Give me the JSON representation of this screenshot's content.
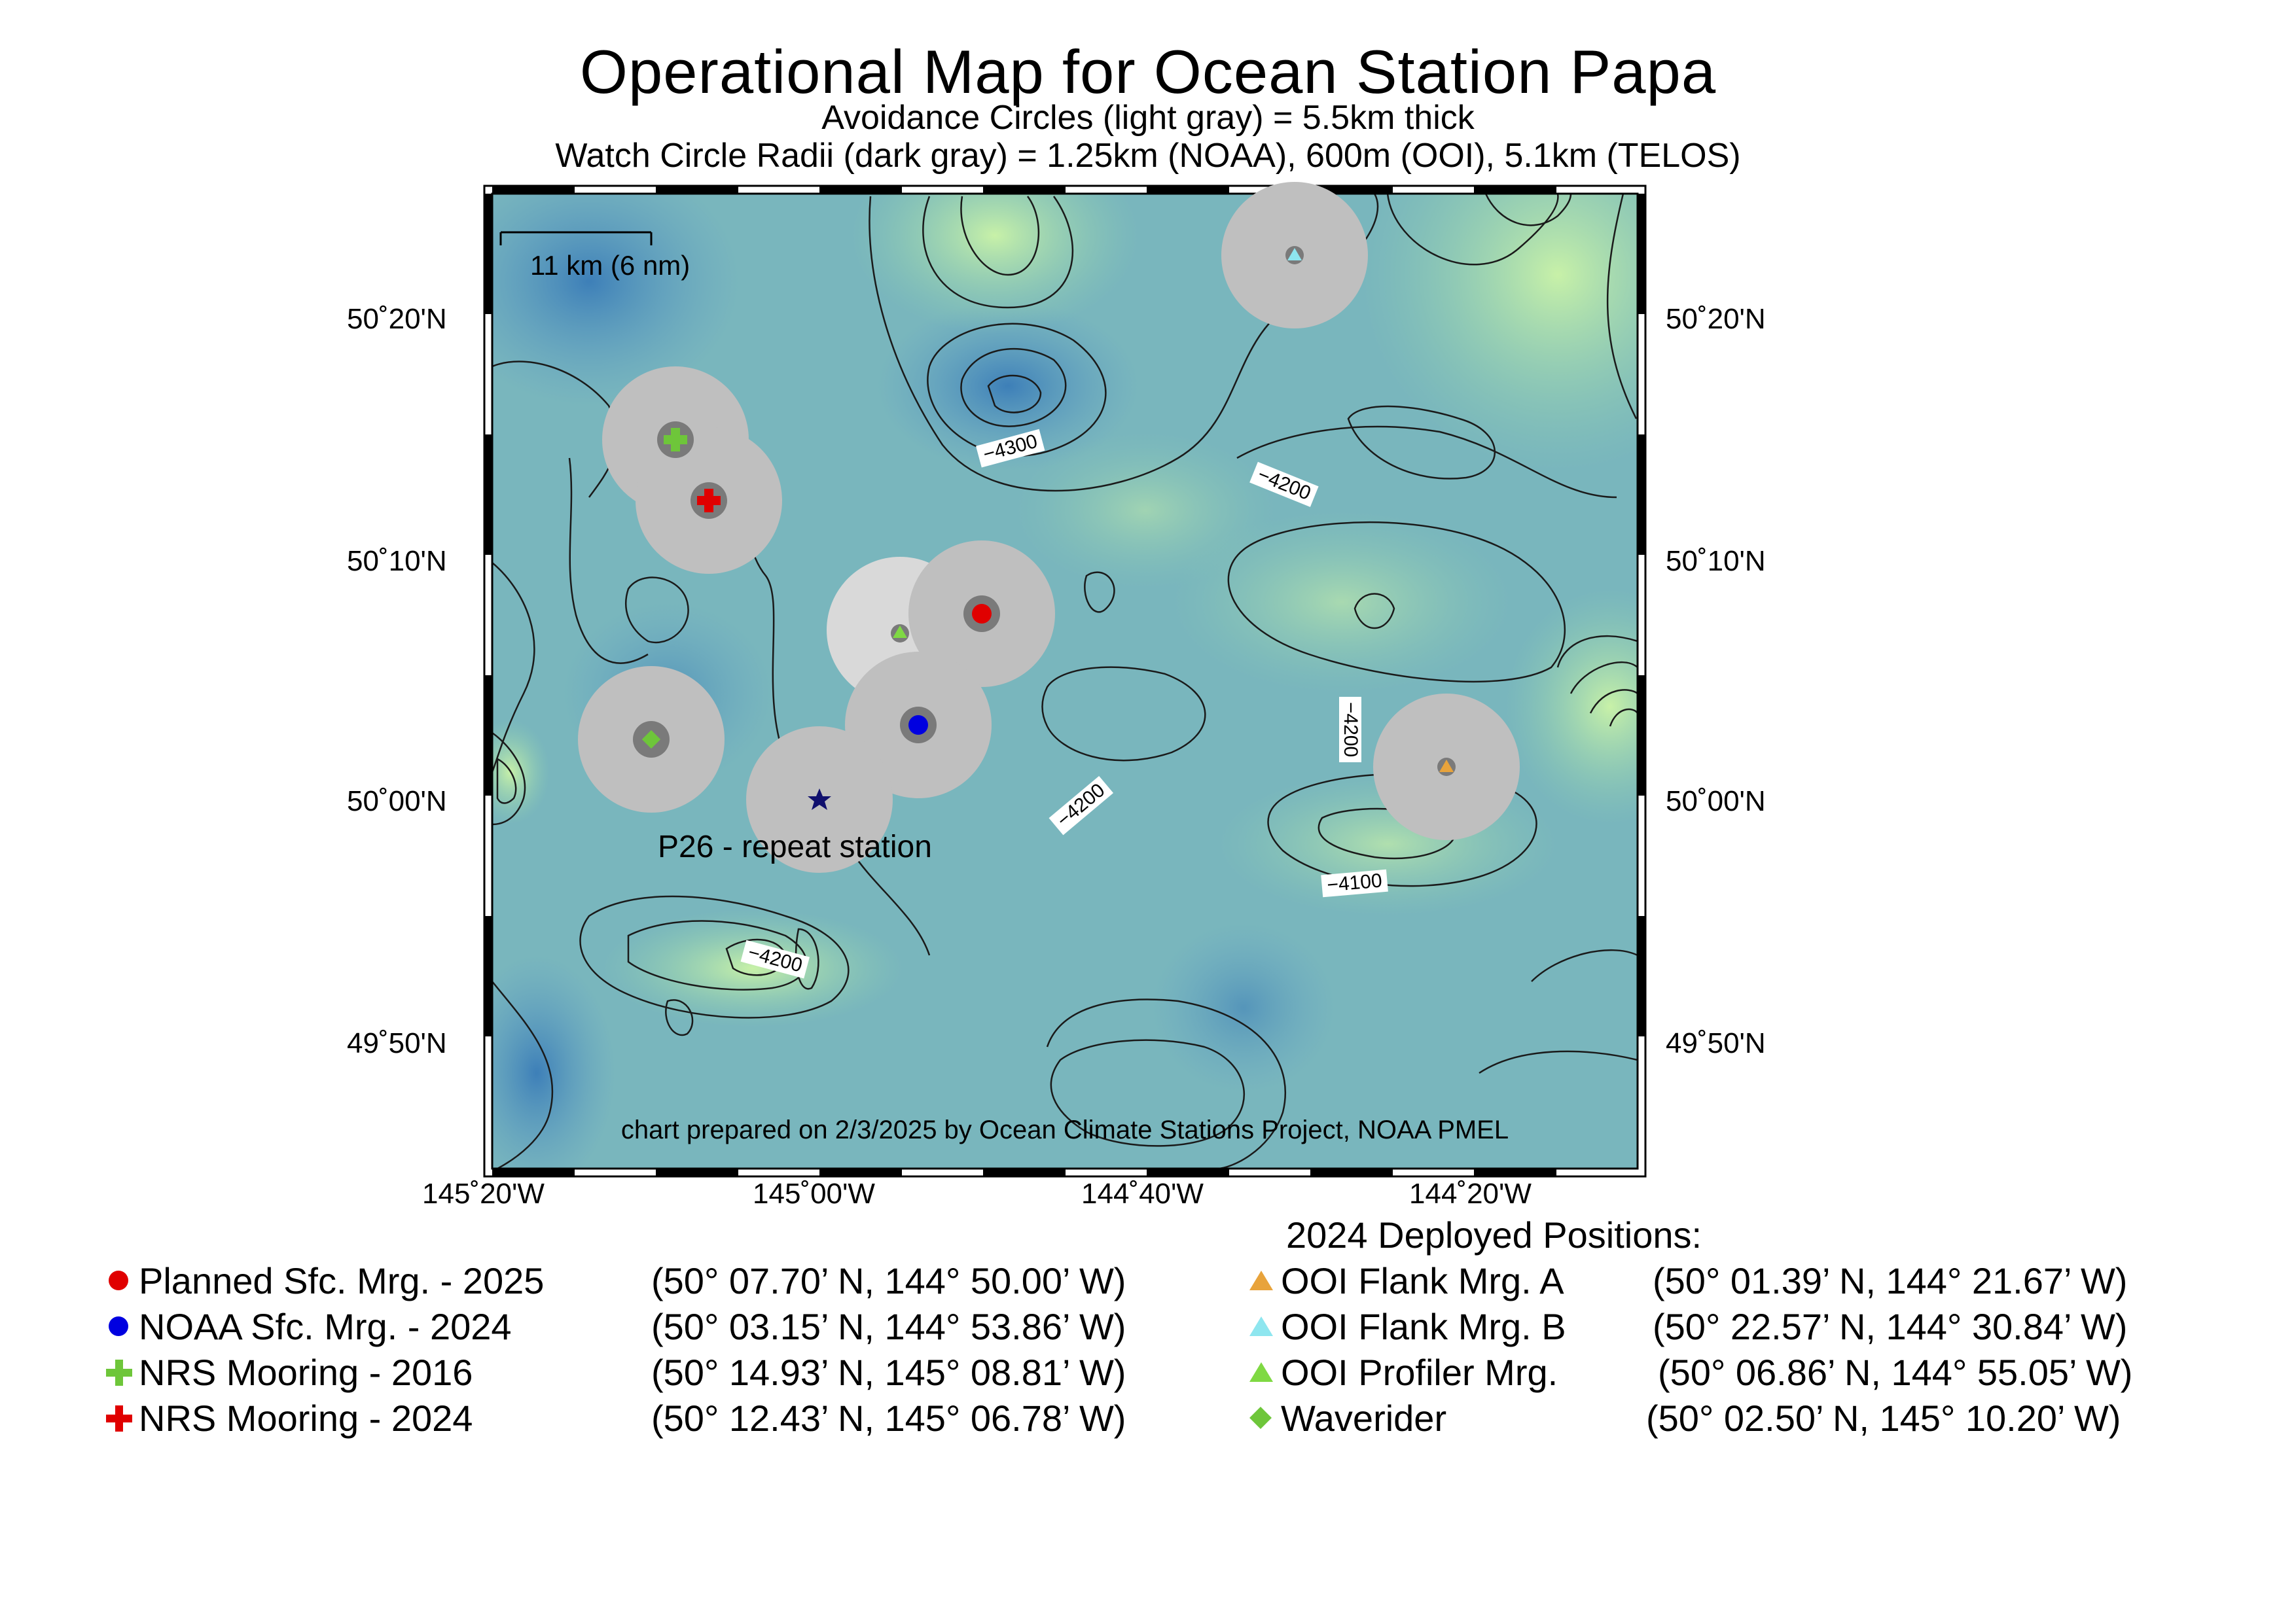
{
  "title": "Operational Map for Ocean Station Papa",
  "subtitle_1": "Avoidance Circles (light gray) = 5.5km thick",
  "subtitle_2": "Watch Circle Radii (dark gray) = 1.25km (NOAA), 600m (OOI), 5.1km (TELOS)",
  "scale_bar": "11 km (6 nm)",
  "credit": "chart prepared on 2/3/2025 by Ocean Climate Stations Project, NOAA PMEL",
  "station_label": "P26 - repeat station",
  "lat_labels": [
    "50˚20'N",
    "50˚10'N",
    "50˚00'N",
    "49˚50'N"
  ],
  "lon_labels": [
    "145˚20'W",
    "145˚00'W",
    "144˚40'W",
    "144˚20'W"
  ],
  "contour_labels": [
    "−4300",
    "−4200",
    "−4200",
    "−4200",
    "−4100",
    "−4200"
  ],
  "colors": {
    "planned": "#e00000",
    "noaa": "#0000e0",
    "nrs2016": "#6ec63a",
    "nrs2024": "#e00000",
    "ooi_a": "#e8a33b",
    "ooi_b": "#8ee6ef",
    "ooi_prof": "#7fd943",
    "waverider": "#6ec63a",
    "star": "#10106e",
    "watch_circle": "#bfbfbf",
    "avoid_circle": "#d9d9d9",
    "inner_circle": "#7a7a7a"
  },
  "legend_left": [
    {
      "label": "Planned Sfc. Mrg. - 2025",
      "coords": "(50° 07.70’ N, 144° 50.00’ W)",
      "symbol": "dot",
      "color": "#e00000"
    },
    {
      "label": "NOAA Sfc. Mrg. - 2024",
      "coords": "(50° 03.15’ N, 144° 53.86’ W)",
      "symbol": "dot",
      "color": "#0000e0"
    },
    {
      "label": "NRS Mooring - 2016",
      "coords": "(50° 14.93’ N, 145° 08.81’ W)",
      "symbol": "cross",
      "color": "#6ec63a"
    },
    {
      "label": "NRS Mooring - 2024",
      "coords": "(50° 12.43’ N, 145° 06.78’ W)",
      "symbol": "cross",
      "color": "#e00000"
    }
  ],
  "legend_right_heading": "2024 Deployed Positions:",
  "legend_right": [
    {
      "label": "OOI Flank Mrg. A",
      "coords": "(50° 01.39’ N, 144° 21.67’ W)",
      "symbol": "triangle",
      "color": "#e8a33b"
    },
    {
      "label": "OOI Flank Mrg. B",
      "coords": "(50° 22.57’ N, 144° 30.84’ W)",
      "symbol": "triangle",
      "color": "#8ee6ef"
    },
    {
      "label": "OOI Profiler Mrg.",
      "coords": "(50° 06.86’ N, 144° 55.05’ W)",
      "symbol": "triangle",
      "color": "#7fd943"
    },
    {
      "label": "Waverider",
      "coords": "(50° 02.50’ N, 145° 10.20’ W)",
      "symbol": "diamond",
      "color": "#6ec63a"
    }
  ]
}
